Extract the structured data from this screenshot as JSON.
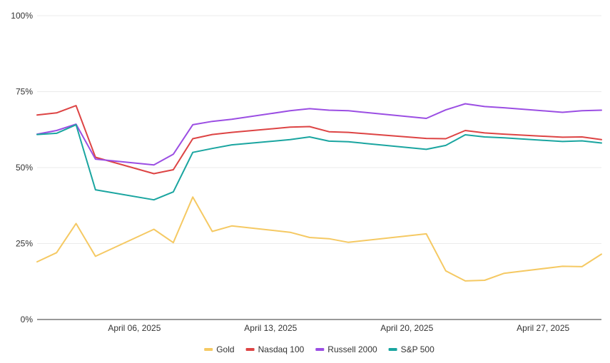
{
  "chart_data": {
    "type": "line",
    "title": "",
    "xlabel": "",
    "ylabel": "",
    "x_ticks": [
      {
        "date": "2025-04-06",
        "label": "April 06, 2025"
      },
      {
        "date": "2025-04-13",
        "label": "April 13, 2025"
      },
      {
        "date": "2025-04-20",
        "label": "April 20, 2025"
      },
      {
        "date": "2025-04-27",
        "label": "April 27, 2025"
      }
    ],
    "y_ticks": [
      {
        "value": 0,
        "label": "0%"
      },
      {
        "value": 25,
        "label": "25%"
      },
      {
        "value": 50,
        "label": "50%"
      },
      {
        "value": 75,
        "label": "75%"
      },
      {
        "value": 100,
        "label": "100%"
      }
    ],
    "ylim": [
      0,
      100
    ],
    "xlim": [
      "2025-04-01",
      "2025-04-30"
    ],
    "grid": true,
    "legend_position": "bottom-center",
    "series": [
      {
        "name": "Gold",
        "color": "#f5c963",
        "points": [
          {
            "x": "2025-04-01",
            "y": 19.0
          },
          {
            "x": "2025-04-02",
            "y": 22.0
          },
          {
            "x": "2025-04-03",
            "y": 31.6
          },
          {
            "x": "2025-04-04",
            "y": 20.8
          },
          {
            "x": "2025-04-07",
            "y": 29.7
          },
          {
            "x": "2025-04-08",
            "y": 25.3
          },
          {
            "x": "2025-04-09",
            "y": 40.3
          },
          {
            "x": "2025-04-10",
            "y": 29.0
          },
          {
            "x": "2025-04-11",
            "y": 30.8
          },
          {
            "x": "2025-04-14",
            "y": 28.7
          },
          {
            "x": "2025-04-15",
            "y": 27.0
          },
          {
            "x": "2025-04-16",
            "y": 26.6
          },
          {
            "x": "2025-04-17",
            "y": 25.4
          },
          {
            "x": "2025-04-21",
            "y": 28.2
          },
          {
            "x": "2025-04-22",
            "y": 16.0
          },
          {
            "x": "2025-04-23",
            "y": 12.7
          },
          {
            "x": "2025-04-24",
            "y": 12.9
          },
          {
            "x": "2025-04-25",
            "y": 15.2
          },
          {
            "x": "2025-04-28",
            "y": 17.5
          },
          {
            "x": "2025-04-29",
            "y": 17.4
          },
          {
            "x": "2025-04-30",
            "y": 21.5
          }
        ]
      },
      {
        "name": "Nasdaq 100",
        "color": "#dd4444",
        "points": [
          {
            "x": "2025-04-01",
            "y": 67.3
          },
          {
            "x": "2025-04-02",
            "y": 68.0
          },
          {
            "x": "2025-04-03",
            "y": 70.4
          },
          {
            "x": "2025-04-04",
            "y": 53.4
          },
          {
            "x": "2025-04-07",
            "y": 48.0
          },
          {
            "x": "2025-04-08",
            "y": 49.3
          },
          {
            "x": "2025-04-09",
            "y": 59.5
          },
          {
            "x": "2025-04-10",
            "y": 60.9
          },
          {
            "x": "2025-04-11",
            "y": 61.6
          },
          {
            "x": "2025-04-14",
            "y": 63.3
          },
          {
            "x": "2025-04-15",
            "y": 63.5
          },
          {
            "x": "2025-04-16",
            "y": 61.8
          },
          {
            "x": "2025-04-17",
            "y": 61.6
          },
          {
            "x": "2025-04-21",
            "y": 59.6
          },
          {
            "x": "2025-04-22",
            "y": 59.5
          },
          {
            "x": "2025-04-23",
            "y": 62.2
          },
          {
            "x": "2025-04-24",
            "y": 61.4
          },
          {
            "x": "2025-04-25",
            "y": 61.0
          },
          {
            "x": "2025-04-28",
            "y": 60.0
          },
          {
            "x": "2025-04-29",
            "y": 60.1
          },
          {
            "x": "2025-04-30",
            "y": 59.2
          }
        ]
      },
      {
        "name": "Russell 2000",
        "color": "#9b4ee3",
        "points": [
          {
            "x": "2025-04-01",
            "y": 61.0
          },
          {
            "x": "2025-04-02",
            "y": 62.2
          },
          {
            "x": "2025-04-03",
            "y": 64.3
          },
          {
            "x": "2025-04-04",
            "y": 52.8
          },
          {
            "x": "2025-04-07",
            "y": 50.9
          },
          {
            "x": "2025-04-08",
            "y": 54.4
          },
          {
            "x": "2025-04-09",
            "y": 64.1
          },
          {
            "x": "2025-04-10",
            "y": 65.2
          },
          {
            "x": "2025-04-11",
            "y": 65.9
          },
          {
            "x": "2025-04-14",
            "y": 68.7
          },
          {
            "x": "2025-04-15",
            "y": 69.4
          },
          {
            "x": "2025-04-16",
            "y": 68.9
          },
          {
            "x": "2025-04-17",
            "y": 68.7
          },
          {
            "x": "2025-04-21",
            "y": 66.2
          },
          {
            "x": "2025-04-22",
            "y": 69.0
          },
          {
            "x": "2025-04-23",
            "y": 71.0
          },
          {
            "x": "2025-04-24",
            "y": 70.1
          },
          {
            "x": "2025-04-25",
            "y": 69.7
          },
          {
            "x": "2025-04-28",
            "y": 68.2
          },
          {
            "x": "2025-04-29",
            "y": 68.7
          },
          {
            "x": "2025-04-30",
            "y": 68.9
          }
        ]
      },
      {
        "name": "S&P 500",
        "color": "#1aa5a0",
        "points": [
          {
            "x": "2025-04-01",
            "y": 60.9
          },
          {
            "x": "2025-04-02",
            "y": 61.3
          },
          {
            "x": "2025-04-03",
            "y": 64.1
          },
          {
            "x": "2025-04-04",
            "y": 42.7
          },
          {
            "x": "2025-04-07",
            "y": 39.4
          },
          {
            "x": "2025-04-08",
            "y": 42.0
          },
          {
            "x": "2025-04-09",
            "y": 55.0
          },
          {
            "x": "2025-04-10",
            "y": 56.3
          },
          {
            "x": "2025-04-11",
            "y": 57.5
          },
          {
            "x": "2025-04-14",
            "y": 59.2
          },
          {
            "x": "2025-04-15",
            "y": 60.1
          },
          {
            "x": "2025-04-16",
            "y": 58.7
          },
          {
            "x": "2025-04-17",
            "y": 58.5
          },
          {
            "x": "2025-04-21",
            "y": 56.0
          },
          {
            "x": "2025-04-22",
            "y": 57.3
          },
          {
            "x": "2025-04-23",
            "y": 60.8
          },
          {
            "x": "2025-04-24",
            "y": 60.1
          },
          {
            "x": "2025-04-25",
            "y": 59.8
          },
          {
            "x": "2025-04-28",
            "y": 58.6
          },
          {
            "x": "2025-04-29",
            "y": 58.8
          },
          {
            "x": "2025-04-30",
            "y": 58.1
          }
        ]
      }
    ]
  }
}
